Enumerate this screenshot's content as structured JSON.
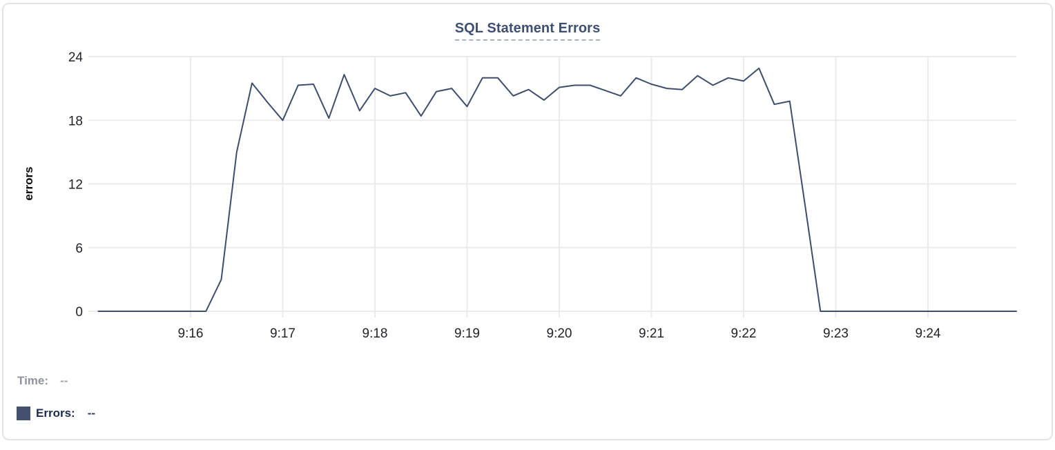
{
  "chart": {
    "title": "SQL Statement Errors"
  },
  "tooltip": {
    "time_label": "Time:",
    "time_value": "--",
    "errors_label": "Errors:",
    "errors_value": "--"
  },
  "colors": {
    "line": "#3e4d6c",
    "swatch": "#44516e",
    "title": "#3e4f72",
    "title_underline": "#a8b2c7",
    "grid": "#ebebee",
    "axis_text": "#212327",
    "axis_title_text": "#0c0d0f",
    "time_label": "#8e939c",
    "errors_label": "#1e2b4d",
    "card_border": "#e3e4e8"
  },
  "chart_data": {
    "type": "line",
    "title": "SQL Statement Errors",
    "xlabel": "",
    "ylabel": "errors",
    "ylim": [
      0,
      24
    ],
    "y_ticks": [
      0,
      6,
      12,
      18,
      24
    ],
    "x_tick_labels": [
      "9:16",
      "9:17",
      "9:18",
      "9:19",
      "9:20",
      "9:21",
      "9:22",
      "9:23",
      "9:24"
    ],
    "x_range": [
      "9:15:00",
      "9:25:00"
    ],
    "sample_interval_seconds": 10,
    "grid": true,
    "legend_position": "bottom-left",
    "series": [
      {
        "name": "Errors",
        "start_time": "9:15:00",
        "values": [
          0,
          0,
          0,
          0,
          0,
          0,
          0,
          0,
          3,
          15,
          21.5,
          19.7,
          18,
          21.3,
          21.4,
          18.2,
          22.3,
          18.9,
          21,
          20.3,
          20.6,
          18.4,
          20.7,
          21,
          19.3,
          22,
          22,
          20.3,
          20.9,
          19.9,
          21.1,
          21.3,
          21.3,
          20.8,
          20.3,
          22,
          21.4,
          21,
          20.9,
          22.2,
          21.3,
          22,
          21.7,
          22.9,
          19.5,
          19.8,
          10,
          0,
          0,
          0,
          0,
          0,
          0,
          0,
          0,
          0,
          0,
          0,
          0,
          0,
          0
        ]
      }
    ]
  }
}
